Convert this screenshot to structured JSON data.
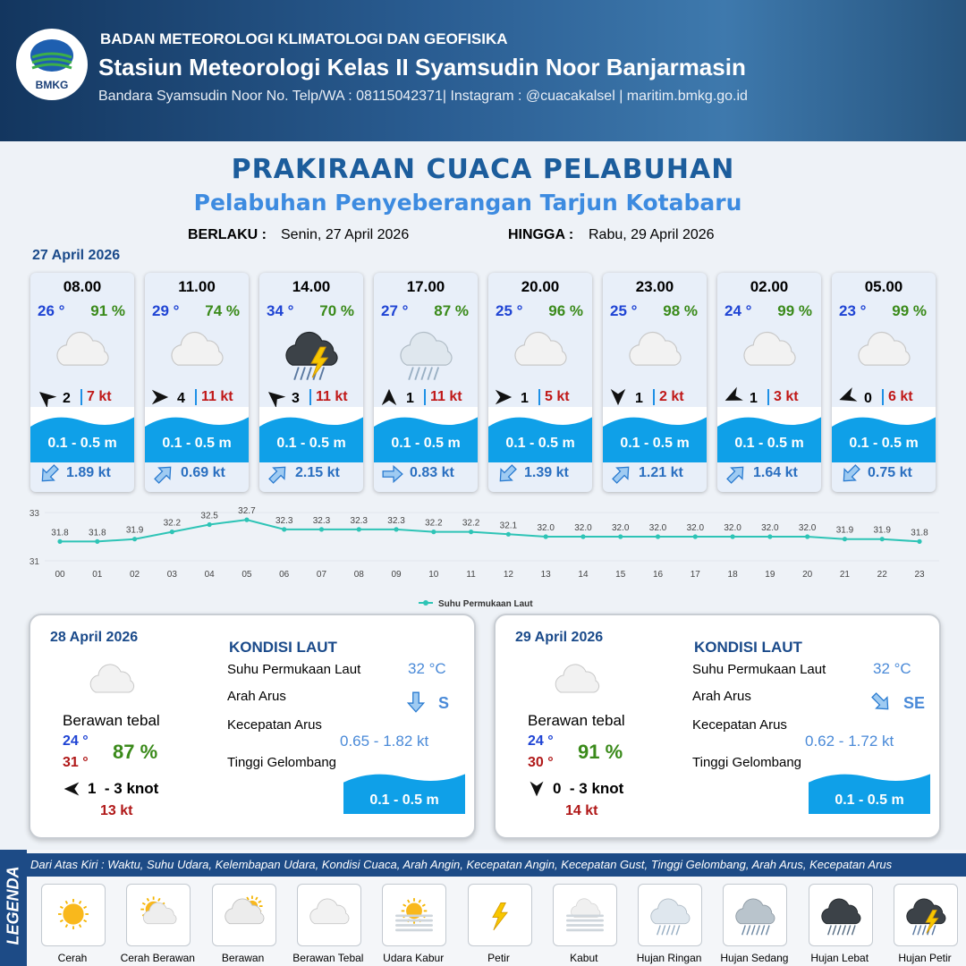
{
  "header": {
    "logo": "BMKG",
    "org": "BADAN METEOROLOGI KLIMATOLOGI DAN GEOFISIKA",
    "station": "Stasiun Meteorologi Kelas II Syamsudin Noor Banjarmasin",
    "contact": "Bandara Syamsudin Noor No. Telp/WA : 08115042371| Instagram : @cuacakalsel | maritim.bmkg.go.id"
  },
  "title": "PRAKIRAAN CUACA PELABUHAN",
  "subtitle": "Pelabuhan Penyeberangan Tarjun Kotabaru",
  "validity": {
    "from_label": "BERLAKU :",
    "from": "Senin, 27 April 2026",
    "to_label": "HINGGA :",
    "to": "Rabu, 29 April 2026"
  },
  "today": {
    "date": "27 April 2026",
    "forecasts": [
      {
        "time": "08.00",
        "temp": "26 °",
        "humidity": "91 %",
        "wind": 2,
        "gust": "7 kt",
        "wave": "0.1 - 0.5 m",
        "current": "1.89 kt"
      },
      {
        "time": "11.00",
        "temp": "29 °",
        "humidity": "74 %",
        "wind": 4,
        "gust": "11 kt",
        "wave": "0.1 - 0.5 m",
        "current": "0.69 kt"
      },
      {
        "time": "14.00",
        "temp": "34 °",
        "humidity": "70 %",
        "wind": 3,
        "gust": "11 kt",
        "wave": "0.1 - 0.5 m",
        "current": "2.15 kt"
      },
      {
        "time": "17.00",
        "temp": "27 °",
        "humidity": "87 %",
        "wind": 1,
        "gust": "11 kt",
        "wave": "0.1 - 0.5 m",
        "current": "0.83 kt"
      },
      {
        "time": "20.00",
        "temp": "25 °",
        "humidity": "96 %",
        "wind": 1,
        "gust": "5 kt",
        "wave": "0.1 - 0.5 m",
        "current": "1.39 kt"
      },
      {
        "time": "23.00",
        "temp": "25 °",
        "humidity": "98 %",
        "wind": 1,
        "gust": "2 kt",
        "wave": "0.1 - 0.5 m",
        "current": "1.21 kt"
      },
      {
        "time": "02.00",
        "temp": "24 °",
        "humidity": "99 %",
        "wind": 1,
        "gust": "3 kt",
        "wave": "0.1 - 0.5 m",
        "current": "1.64 kt"
      },
      {
        "time": "05.00",
        "temp": "23 °",
        "humidity": "99 %",
        "wind": 0,
        "gust": "6 kt",
        "wave": "0.1 - 0.5 m",
        "current": "0.75 kt"
      }
    ]
  },
  "sst_chart": {
    "type": "line",
    "legend": "Suhu Permukaan Laut",
    "color": "#2ec4b6",
    "categories": [
      "00",
      "01",
      "02",
      "03",
      "04",
      "05",
      "06",
      "07",
      "08",
      "09",
      "10",
      "11",
      "12",
      "13",
      "14",
      "15",
      "16",
      "17",
      "18",
      "19",
      "20",
      "21",
      "22",
      "23"
    ],
    "values": [
      31.8,
      31.8,
      31.9,
      32.2,
      32.5,
      32.7,
      32.3,
      32.3,
      32.3,
      32.3,
      32.2,
      32.2,
      32.1,
      32,
      32,
      32,
      32,
      32,
      32,
      32,
      32,
      31.9,
      31.9,
      31.8
    ],
    "value_labels": [
      "31.8",
      "31.8",
      "31.9",
      "32.2",
      "32.5",
      "32.7",
      "32.3",
      "32.3",
      "32.3",
      "32.3",
      "32.2",
      "32.2",
      "32.1",
      "32.0",
      "32.0",
      "32.0",
      "32.0",
      "32.0",
      "32.0",
      "32.0",
      "32.0",
      "31.9",
      "31.9",
      "31.8"
    ],
    "ylim": [
      31,
      33
    ],
    "yticks": [
      31,
      33
    ]
  },
  "days": [
    {
      "date": "28 April 2026",
      "weather": "Berawan tebal",
      "temp_min": "24 °",
      "temp_max": "31 °",
      "humidity": "87 %",
      "wind": "1  - 3 knot",
      "gust": "13 kt",
      "sea": {
        "title": "KONDISI LAUT",
        "sst_label": "Suhu Permukaan Laut",
        "sst": "32 °C",
        "dir_label": "Arah Arus",
        "dir": "S",
        "speed_label": "Kecepatan Arus",
        "speed": "0.65 - 1.82 kt",
        "wave_label": "Tinggi Gelombang",
        "wave": "0.1 - 0.5 m"
      }
    },
    {
      "date": "29 April 2026",
      "weather": "Berawan tebal",
      "temp_min": "24 °",
      "temp_max": "30 °",
      "humidity": "91 %",
      "wind": "0  - 3 knot",
      "gust": "14 kt",
      "sea": {
        "title": "KONDISI LAUT",
        "sst_label": "Suhu Permukaan Laut",
        "sst": "32 °C",
        "dir_label": "Arah Arus",
        "dir": "SE",
        "speed_label": "Kecepatan Arus",
        "speed": "0.62 - 1.72 kt",
        "wave_label": "Tinggi Gelombang",
        "wave": "0.1 - 0.5 m"
      }
    }
  ],
  "legend": {
    "title": "LEGENDA",
    "description": "Dari Atas Kiri : Waktu, Suhu Udara, Kelembapan Udara, Kondisi Cuaca, Arah Angin, Kecepatan Angin, Kecepatan Gust, Tinggi Gelombang, Arah Arus, Kecepatan Arus",
    "items": [
      "Cerah",
      "Cerah Berawan",
      "Berawan",
      "Berawan Tebal",
      "Udara Kabur",
      "Petir",
      "Kabut",
      "Hujan Ringan",
      "Hujan Sedang",
      "Hujan Lebat",
      "Hujan Petir"
    ]
  }
}
